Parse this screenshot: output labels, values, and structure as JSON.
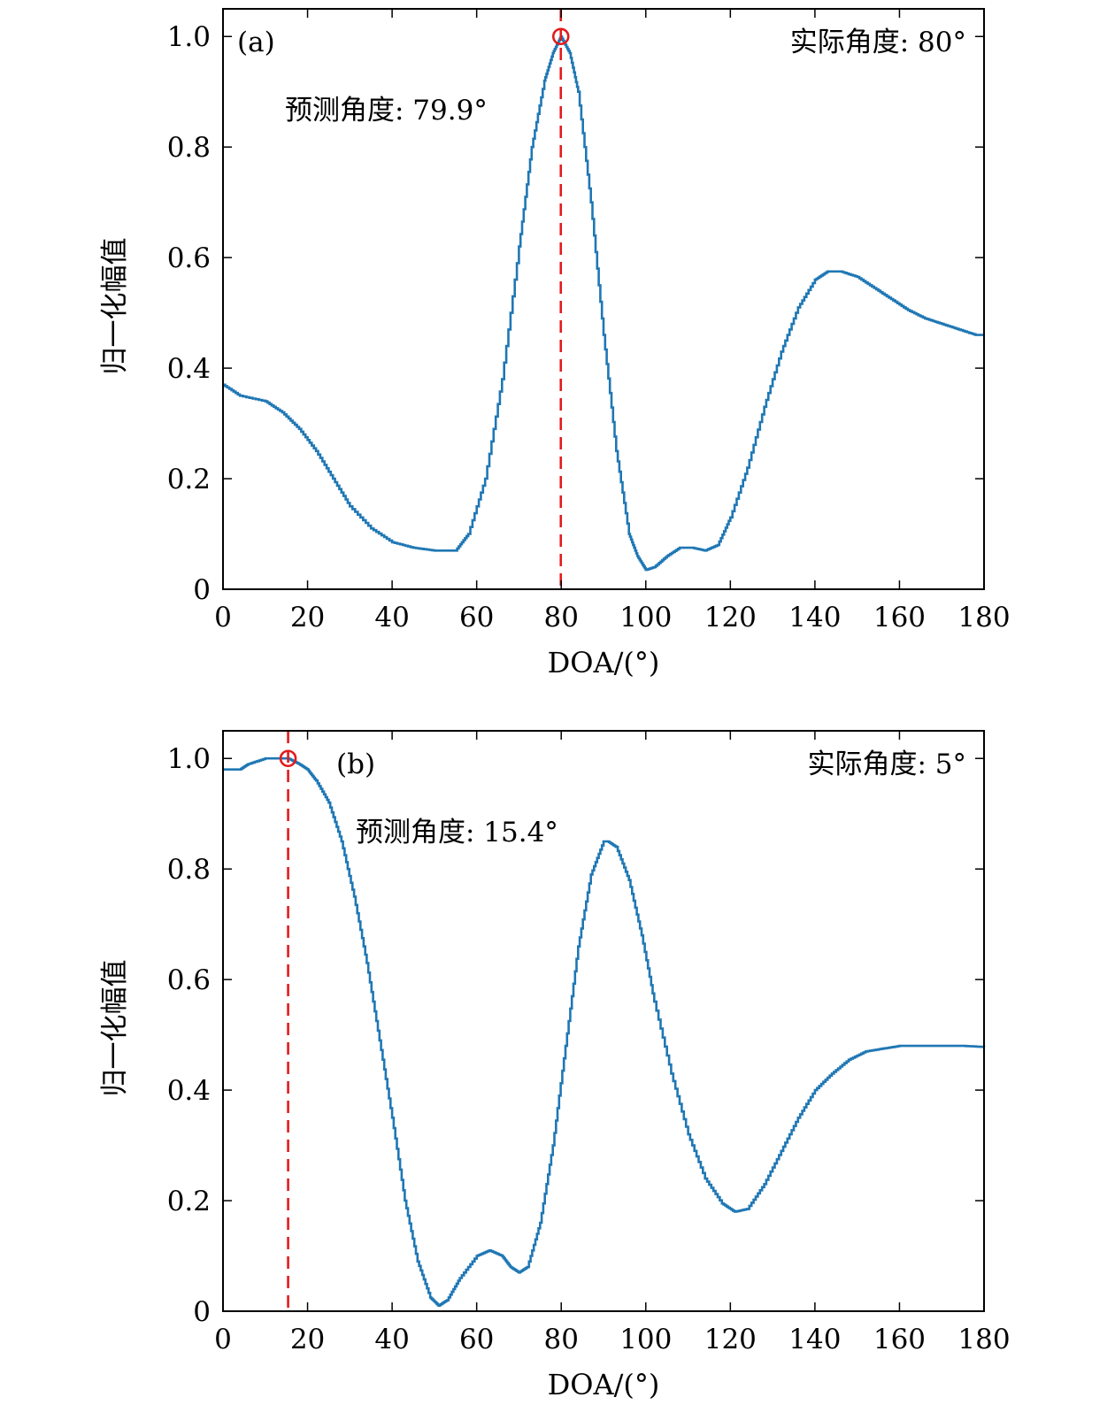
{
  "chart_data": [
    {
      "type": "line",
      "panel_label": "(a)",
      "xlabel": "DOA/(°)",
      "ylabel": "归一化幅值",
      "xlim": [
        0,
        180
      ],
      "ylim": [
        0,
        1.05
      ],
      "xticks": [
        "0",
        "20",
        "40",
        "60",
        "80",
        "100",
        "120",
        "140",
        "160",
        "180"
      ],
      "yticks": [
        "0",
        "0.2",
        "0.4",
        "0.6",
        "0.8",
        "1.0"
      ],
      "actual_text": "实际角度: 80°",
      "predicted_text": "预测角度: 79.9°",
      "predicted_angle": 79.9,
      "peak_value": 1.0,
      "series_color": "#1f77b4",
      "marker_color": "#e31a1c",
      "series": [
        {
          "x": [
            0,
            4,
            10,
            14,
            18,
            22,
            26,
            30,
            35,
            40,
            45,
            50,
            55,
            58,
            62,
            66,
            70,
            73,
            76,
            78,
            79.9,
            82,
            84,
            87,
            90,
            93,
            96,
            98,
            100,
            102,
            105,
            108,
            111,
            114,
            117,
            120,
            124,
            128,
            132,
            136,
            140,
            143,
            146,
            150,
            154,
            158,
            162,
            166,
            170,
            174,
            178,
            180
          ],
          "y": [
            0.37,
            0.35,
            0.34,
            0.32,
            0.29,
            0.25,
            0.2,
            0.15,
            0.11,
            0.085,
            0.075,
            0.07,
            0.07,
            0.1,
            0.2,
            0.38,
            0.62,
            0.8,
            0.92,
            0.97,
            1.0,
            0.97,
            0.9,
            0.7,
            0.46,
            0.25,
            0.1,
            0.06,
            0.035,
            0.04,
            0.06,
            0.075,
            0.075,
            0.07,
            0.08,
            0.13,
            0.22,
            0.33,
            0.43,
            0.51,
            0.56,
            0.575,
            0.575,
            0.565,
            0.545,
            0.525,
            0.505,
            0.49,
            0.48,
            0.47,
            0.46,
            0.46
          ]
        }
      ]
    },
    {
      "type": "line",
      "panel_label": "(b)",
      "xlabel": "DOA/(°)",
      "ylabel": "归一化幅值",
      "xlim": [
        0,
        180
      ],
      "ylim": [
        0,
        1.05
      ],
      "xticks": [
        "0",
        "20",
        "40",
        "60",
        "80",
        "100",
        "120",
        "140",
        "160",
        "180"
      ],
      "yticks": [
        "0",
        "0.2",
        "0.4",
        "0.6",
        "0.8",
        "1.0"
      ],
      "actual_text": "实际角度: 5°",
      "predicted_text": "预测角度: 15.4°",
      "predicted_angle": 15.4,
      "peak_value": 1.0,
      "series_color": "#1f77b4",
      "marker_color": "#e31a1c",
      "series": [
        {
          "x": [
            0,
            4,
            6,
            10,
            15.4,
            18,
            20,
            22,
            25,
            28,
            31,
            34,
            37,
            40,
            43,
            46,
            49,
            51,
            53,
            56,
            60,
            63,
            66,
            68,
            70,
            72,
            75,
            78,
            81,
            84,
            87,
            90,
            91,
            93,
            96,
            99,
            102,
            106,
            110,
            114,
            118,
            121,
            124,
            128,
            132,
            136,
            140,
            144,
            148,
            152,
            156,
            160,
            165,
            170,
            175,
            180
          ],
          "y": [
            0.98,
            0.98,
            0.99,
            1.0,
            1.0,
            0.99,
            0.98,
            0.96,
            0.92,
            0.85,
            0.75,
            0.63,
            0.49,
            0.35,
            0.2,
            0.09,
            0.025,
            0.01,
            0.02,
            0.06,
            0.1,
            0.11,
            0.1,
            0.08,
            0.07,
            0.08,
            0.16,
            0.3,
            0.48,
            0.66,
            0.79,
            0.85,
            0.85,
            0.84,
            0.78,
            0.68,
            0.56,
            0.43,
            0.32,
            0.24,
            0.195,
            0.18,
            0.185,
            0.23,
            0.29,
            0.35,
            0.4,
            0.43,
            0.455,
            0.47,
            0.475,
            0.48,
            0.48,
            0.48,
            0.48,
            0.478
          ]
        }
      ]
    }
  ]
}
